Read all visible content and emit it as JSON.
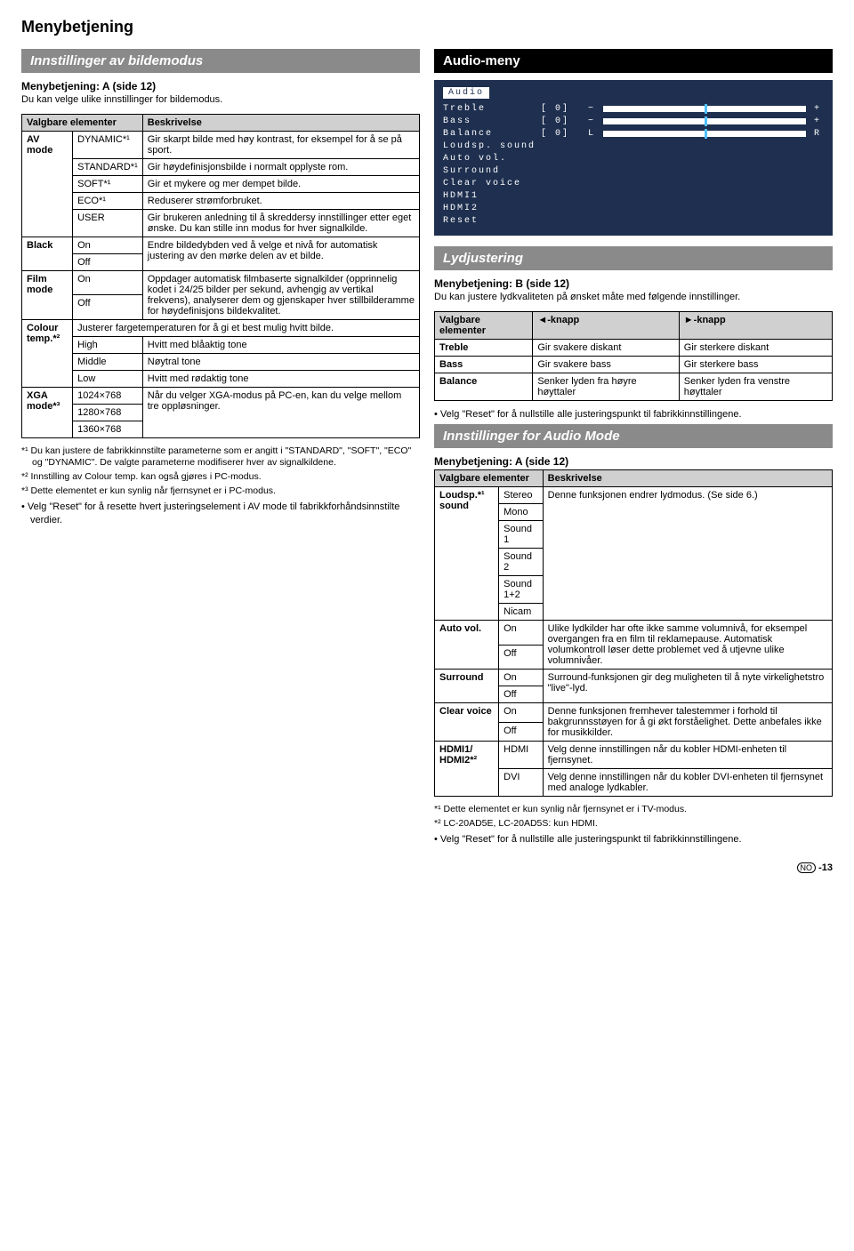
{
  "page_title": "Menybetjening",
  "left": {
    "section1": {
      "bar": "Innstillinger av bildemodus",
      "subheading": "Menybetjening: A (side 12)",
      "intro": "Du kan velge ulike innstillinger for bildemodus.",
      "table": {
        "headers": [
          "Valgbare elementer",
          "",
          "Beskrivelse"
        ],
        "rows": [
          [
            "AV mode",
            "DYNAMIC*¹",
            "Gir skarpt bilde med høy kontrast, for eksempel for å se på sport."
          ],
          [
            "",
            "STANDARD*¹",
            "Gir høydefinisjonsbilde i normalt opplyste rom."
          ],
          [
            "",
            "SOFT*¹",
            "Gir et mykere og mer dempet bilde."
          ],
          [
            "",
            "ECO*¹",
            "Reduserer strømforbruket."
          ],
          [
            "",
            "USER",
            "Gir brukeren anledning til å skreddersy innstillinger etter eget ønske. Du kan stille inn modus for hver signalkilde."
          ],
          [
            "Black",
            "On",
            "Endre bildedybden ved å velge et nivå for automatisk justering av den mørke delen av et bilde."
          ],
          [
            "",
            "Off",
            ""
          ],
          [
            "Film mode",
            "On",
            "Oppdager automatisk filmbaserte signalkilder (opprinnelig kodet i 24/25 bilder per sekund, avhengig av vertikal frekvens), analyserer dem og gjenskaper hver stillbilderamme for høydefinisjons bildekvalitet."
          ],
          [
            "",
            "Off",
            ""
          ],
          [
            "Colour temp.*²",
            "Justerer fargetemperaturen for å gi et best mulig hvitt bilde.",
            ""
          ],
          [
            "",
            "High",
            "Hvitt med blåaktig tone"
          ],
          [
            "",
            "Middle",
            "Nøytral tone"
          ],
          [
            "",
            "Low",
            "Hvitt med rødaktig tone"
          ],
          [
            "XGA mode*³",
            "1024×768",
            "Når du velger XGA-modus på PC-en, kan du velge mellom tre oppløsninger."
          ],
          [
            "",
            "1280×768",
            ""
          ],
          [
            "",
            "1360×768",
            ""
          ]
        ]
      },
      "footnotes": [
        "*¹ Du kan justere de fabrikkinnstilte parameterne som er angitt i \"STANDARD\", \"SOFT\", \"ECO\" og \"DYNAMIC\". De valgte parameterne modifiserer hver av signalkildene.",
        "*² Innstilling av Colour temp. kan også gjøres i PC-modus.",
        "*³ Dette elementet er kun synlig når fjernsynet er i PC-modus."
      ],
      "bullet": "• Velg \"Reset\" for å resette hvert justeringselement i AV mode til fabrikkforhåndsinnstilte verdier."
    }
  },
  "right": {
    "audio_bar": "Audio-meny",
    "osd": {
      "title": "Audio",
      "rows": [
        {
          "label": "Treble",
          "value": "[  0]",
          "minus": "−",
          "plus": "+",
          "bar": true
        },
        {
          "label": "Bass",
          "value": "[  0]",
          "minus": "−",
          "plus": "+",
          "bar": true
        },
        {
          "label": "Balance",
          "value": "[  0]",
          "minus": "L",
          "plus": "R",
          "bar": true
        },
        {
          "label": "Loudsp. sound",
          "value": "",
          "minus": "",
          "plus": "",
          "bar": false
        },
        {
          "label": "Auto vol.",
          "value": "",
          "minus": "",
          "plus": "",
          "bar": false
        },
        {
          "label": "Surround",
          "value": "",
          "minus": "",
          "plus": "",
          "bar": false
        },
        {
          "label": "Clear voice",
          "value": "",
          "minus": "",
          "plus": "",
          "bar": false
        },
        {
          "label": "HDMI1",
          "value": "",
          "minus": "",
          "plus": "",
          "bar": false
        },
        {
          "label": "HDMI2",
          "value": "",
          "minus": "",
          "plus": "",
          "bar": false
        },
        {
          "label": "Reset",
          "value": "",
          "minus": "",
          "plus": "",
          "bar": false
        }
      ]
    },
    "lyd": {
      "bar": "Lydjustering",
      "subheading": "Menybetjening: B (side 12)",
      "intro": "Du kan justere lydkvaliteten på ønsket måte med følgende innstillinger.",
      "table": {
        "headers": [
          "Valgbare elementer",
          "◄-knapp",
          "►-knapp"
        ],
        "rows": [
          [
            "Treble",
            "Gir svakere diskant",
            "Gir sterkere diskant"
          ],
          [
            "Bass",
            "Gir svakere bass",
            "Gir sterkere bass"
          ],
          [
            "Balance",
            "Senker lyden fra høyre høyttaler",
            "Senker lyden fra venstre høyttaler"
          ]
        ]
      },
      "bullet": "• Velg \"Reset\" for å nullstille alle justeringspunkt til fabrikkinnstillingene."
    },
    "audiomode": {
      "bar": "Innstillinger for Audio Mode",
      "subheading": "Menybetjening: A (side 12)",
      "table": {
        "headers": [
          "Valgbare elementer",
          "",
          "Beskrivelse"
        ],
        "rows": [
          [
            "Loudsp.*¹ sound",
            "Stereo",
            "Denne funksjonen endrer lydmodus. (Se side 6.)"
          ],
          [
            "",
            "Mono",
            ""
          ],
          [
            "",
            "Sound 1",
            ""
          ],
          [
            "",
            "Sound 2",
            ""
          ],
          [
            "",
            "Sound 1+2",
            ""
          ],
          [
            "",
            "Nicam",
            ""
          ],
          [
            "Auto vol.",
            "On",
            "Ulike lydkilder har ofte ikke samme volumnivå, for eksempel overgangen fra en film til reklamepause. Automatisk volumkontroll løser dette problemet ved å utjevne ulike volumnivåer."
          ],
          [
            "",
            "Off",
            ""
          ],
          [
            "Surround",
            "On",
            "Surround-funksjonen gir deg muligheten til å nyte virkelighetstro \"live\"-lyd."
          ],
          [
            "",
            "Off",
            ""
          ],
          [
            "Clear voice",
            "On",
            "Denne funksjonen fremhever talestemmer i forhold til bakgrunnsstøyen for å gi økt forståelighet. Dette anbefales ikke for musikkilder."
          ],
          [
            "",
            "Off",
            ""
          ],
          [
            "HDMI1/ HDMI2*²",
            "HDMI",
            "Velg denne innstillingen når du kobler HDMI-enheten til fjernsynet."
          ],
          [
            "",
            "DVI",
            "Velg denne innstillingen når du kobler DVI-enheten til fjernsynet med analoge lydkabler."
          ]
        ]
      },
      "footnotes": [
        "*¹ Dette elementet er kun synlig når fjernsynet er i TV-modus.",
        "*² LC-20AD5E, LC-20AD5S: kun HDMI."
      ],
      "bullet": "• Velg \"Reset\" for å nullstille alle justeringspunkt til fabrikkinnstillingene."
    }
  },
  "footer": {
    "lang": "NO",
    "page": "-13"
  }
}
